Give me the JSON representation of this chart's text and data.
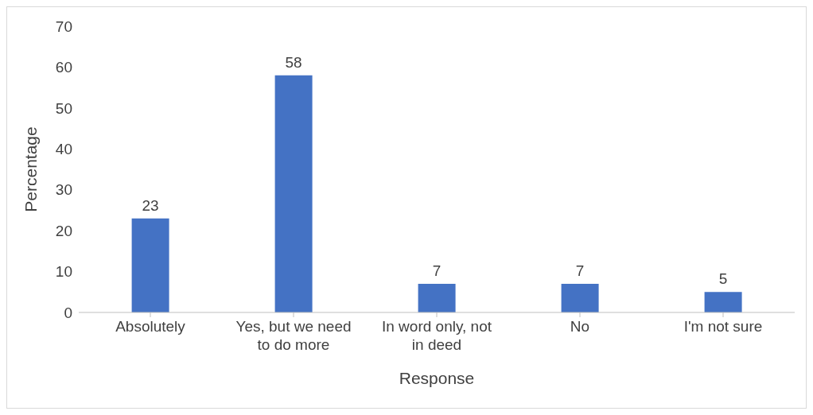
{
  "chart_data": {
    "type": "bar",
    "xlabel": "Response",
    "ylabel": "Percentage",
    "categories": [
      "Absolutely",
      "Yes, but we need to do more",
      "In word only, not in deed",
      "No",
      "I'm not sure"
    ],
    "values": [
      23,
      58,
      7,
      7,
      5
    ],
    "color": "#4472c4",
    "ylim": [
      0,
      70
    ],
    "yticks": [
      0,
      10,
      20,
      30,
      40,
      50,
      60,
      70
    ],
    "grid": false,
    "legend": false,
    "data_labels": true
  }
}
